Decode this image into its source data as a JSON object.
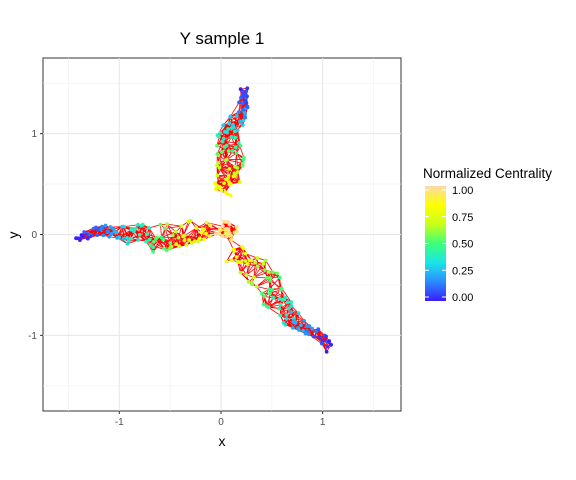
{
  "chart_data": {
    "type": "scatter",
    "title": "Y sample 1",
    "xlabel": "x",
    "ylabel": "y",
    "xlim": [
      -1.75,
      1.77
    ],
    "ylim": [
      -1.75,
      1.75
    ],
    "xticks": [
      -1,
      0,
      1
    ],
    "xtick_labels": [
      "-1",
      "0",
      "1"
    ],
    "yticks": [
      -1,
      0,
      1
    ],
    "ytick_labels": [
      "-1",
      "0",
      "1"
    ],
    "grid": true,
    "edge_color": "#ff0000",
    "legend": {
      "title": "Normalized Centrality",
      "placement": "right",
      "ticks": [
        1.0,
        0.75,
        0.5,
        0.25,
        0.0
      ],
      "tick_labels": [
        "1.00",
        "0.75",
        "0.50",
        "0.25",
        "0.00"
      ],
      "gradient_colors": [
        "#3a1cff",
        "#2a8cff",
        "#19e6e6",
        "#3dff7a",
        "#c8ff19",
        "#ffff00",
        "#ffd8a8"
      ]
    },
    "arms": [
      {
        "name": "top",
        "from": [
          0.0,
          0.4
        ],
        "to": [
          0.22,
          1.45
        ],
        "centrality_from": 0.85,
        "centrality_to": 0.0
      },
      {
        "name": "left",
        "from": [
          -0.1,
          0.0
        ],
        "to": [
          -1.42,
          0.0
        ],
        "centrality_from": 0.85,
        "centrality_to": 0.0
      },
      {
        "name": "bottom-right",
        "from": [
          0.1,
          -0.15
        ],
        "to": [
          1.05,
          -1.15
        ],
        "centrality_from": 0.85,
        "centrality_to": 0.0
      }
    ],
    "center": {
      "x": 0.05,
      "y": 0.05,
      "centrality": 1.0
    }
  }
}
